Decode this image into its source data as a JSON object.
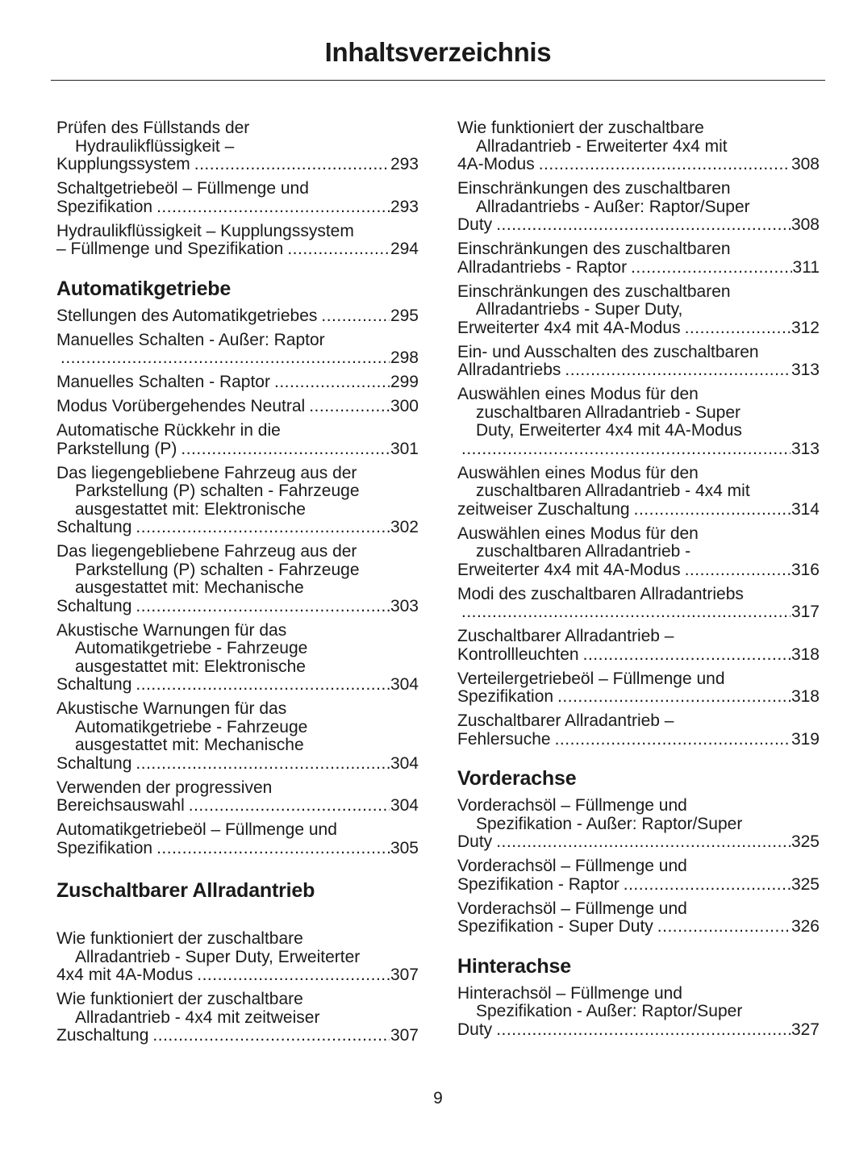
{
  "header": {
    "title": "Inhaltsverzeichnis"
  },
  "columns": [
    {
      "blocks": [
        {
          "type": "entry",
          "lines": [
            "Prüfen des Füllstands der",
            "Hydraulikflüssigkeit –",
            "Kupplungssystem"
          ],
          "page": "293"
        },
        {
          "type": "entry",
          "lines": [
            "Schaltgetriebeöl – Füllmenge und",
            "Spezifikation"
          ],
          "page": "293"
        },
        {
          "type": "entry",
          "lines": [
            "Hydraulikflüssigkeit – Kupplungssystem",
            "– Füllmenge und Spezifikation"
          ],
          "page": "294"
        },
        {
          "type": "heading",
          "text": "Automatikgetriebe"
        },
        {
          "type": "entry",
          "lines": [
            "Stellungen des Automatikgetriebes"
          ],
          "page": "295"
        },
        {
          "type": "entry",
          "lines": [
            "Manuelles Schalten - Außer: Raptor",
            ""
          ],
          "page": "298"
        },
        {
          "type": "entry",
          "lines": [
            "Manuelles Schalten - Raptor"
          ],
          "page": "299"
        },
        {
          "type": "entry",
          "lines": [
            "Modus Vorübergehendes Neutral"
          ],
          "page": "300"
        },
        {
          "type": "entry",
          "lines": [
            "Automatische Rückkehr in die",
            "Parkstellung (P)"
          ],
          "page": "301"
        },
        {
          "type": "entry",
          "lines": [
            "Das liegengebliebene Fahrzeug aus der",
            "Parkstellung (P) schalten - Fahrzeuge",
            "ausgestattet mit: Elektronische",
            "Schaltung"
          ],
          "page": "302"
        },
        {
          "type": "entry",
          "lines": [
            "Das liegengebliebene Fahrzeug aus der",
            "Parkstellung (P) schalten - Fahrzeuge",
            "ausgestattet mit: Mechanische",
            "Schaltung"
          ],
          "page": "303"
        },
        {
          "type": "entry",
          "lines": [
            "Akustische Warnungen für das",
            "Automatikgetriebe - Fahrzeuge",
            "ausgestattet mit: Elektronische",
            "Schaltung"
          ],
          "page": "304"
        },
        {
          "type": "entry",
          "lines": [
            "Akustische Warnungen für das",
            "Automatikgetriebe - Fahrzeuge",
            "ausgestattet mit: Mechanische",
            "Schaltung"
          ],
          "page": "304"
        },
        {
          "type": "entry",
          "lines": [
            "Verwenden der progressiven",
            "Bereichsauswahl"
          ],
          "page": "304"
        },
        {
          "type": "entry",
          "lines": [
            "Automatikgetriebeöl – Füllmenge und",
            "Spezifikation"
          ],
          "page": "305"
        },
        {
          "type": "heading",
          "text": "Zuschaltbarer Allradantrieb",
          "big": true
        },
        {
          "type": "entry",
          "lines": [
            "Wie funktioniert der zuschaltbare",
            "Allradantrieb - Super Duty, Erweiterter",
            "4x4 mit 4A-Modus"
          ],
          "page": "307"
        },
        {
          "type": "entry",
          "lines": [
            "Wie funktioniert der zuschaltbare",
            "Allradantrieb - 4x4 mit zeitweiser",
            "Zuschaltung"
          ],
          "page": "307"
        }
      ]
    },
    {
      "blocks": [
        {
          "type": "entry",
          "lines": [
            "Wie funktioniert der zuschaltbare",
            "Allradantrieb - Erweiterter 4x4 mit",
            "4A-Modus"
          ],
          "page": "308"
        },
        {
          "type": "entry",
          "lines": [
            "Einschränkungen des zuschaltbaren",
            "Allradantriebs - Außer: Raptor/Super",
            "Duty"
          ],
          "page": "308"
        },
        {
          "type": "entry",
          "lines": [
            "Einschränkungen des zuschaltbaren",
            "Allradantriebs - Raptor"
          ],
          "page": "311"
        },
        {
          "type": "entry",
          "lines": [
            "Einschränkungen des zuschaltbaren",
            "Allradantriebs - Super Duty,",
            "Erweiterter 4x4 mit 4A-Modus"
          ],
          "page": "312"
        },
        {
          "type": "entry",
          "lines": [
            "Ein- und Ausschalten des zuschaltbaren",
            "Allradantriebs"
          ],
          "page": "313"
        },
        {
          "type": "entry",
          "lines": [
            "Auswählen eines Modus für den",
            "zuschaltbaren Allradantrieb - Super",
            "Duty, Erweiterter 4x4 mit 4A-Modus",
            ""
          ],
          "page": "313"
        },
        {
          "type": "entry",
          "lines": [
            "Auswählen eines Modus für den",
            "zuschaltbaren Allradantrieb - 4x4 mit",
            "zeitweiser Zuschaltung"
          ],
          "page": "314"
        },
        {
          "type": "entry",
          "lines": [
            "Auswählen eines Modus für den",
            "zuschaltbaren Allradantrieb -",
            "Erweiterter 4x4 mit 4A-Modus"
          ],
          "page": "316"
        },
        {
          "type": "entry",
          "lines": [
            "Modi des zuschaltbaren Allradantriebs",
            ""
          ],
          "page": "317"
        },
        {
          "type": "entry",
          "lines": [
            "Zuschaltbarer Allradantrieb –",
            "Kontrollleuchten"
          ],
          "page": "318"
        },
        {
          "type": "entry",
          "lines": [
            "Verteilergetriebeöl – Füllmenge und",
            "Spezifikation"
          ],
          "page": "318"
        },
        {
          "type": "entry",
          "lines": [
            "Zuschaltbarer Allradantrieb –",
            "Fehlersuche"
          ],
          "page": "319"
        },
        {
          "type": "heading",
          "text": "Vorderachse"
        },
        {
          "type": "entry",
          "lines": [
            "Vorderachsöl – Füllmenge und",
            "Spezifikation - Außer: Raptor/Super",
            "Duty"
          ],
          "page": "325"
        },
        {
          "type": "entry",
          "lines": [
            "Vorderachsöl – Füllmenge und",
            "Spezifikation - Raptor"
          ],
          "page": "325"
        },
        {
          "type": "entry",
          "lines": [
            "Vorderachsöl – Füllmenge und",
            "Spezifikation - Super Duty"
          ],
          "page": "326"
        },
        {
          "type": "heading",
          "text": "Hinterachse"
        },
        {
          "type": "entry",
          "lines": [
            "Hinterachsöl – Füllmenge und",
            "Spezifikation - Außer: Raptor/Super",
            "Duty"
          ],
          "page": "327"
        }
      ]
    }
  ],
  "footer": {
    "page_number": "9"
  }
}
